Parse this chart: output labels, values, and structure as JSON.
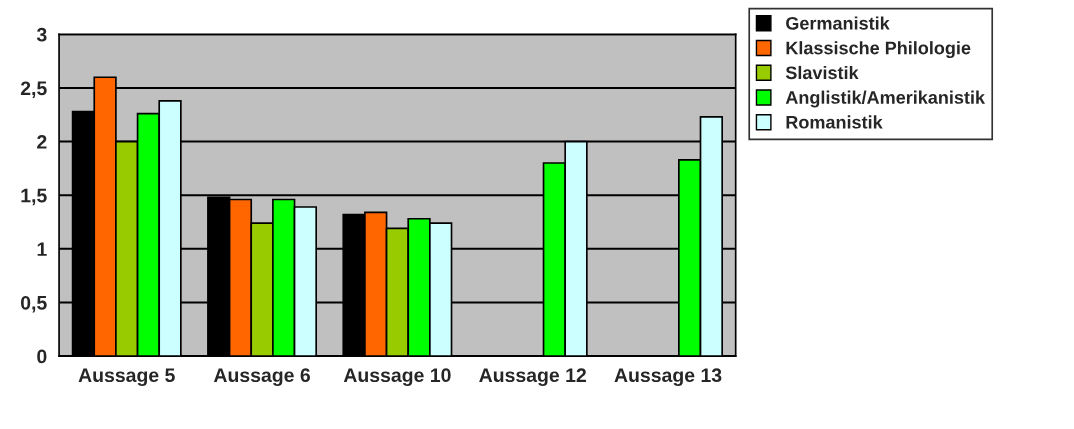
{
  "chart_data": {
    "type": "bar",
    "categories": [
      "Aussage 5",
      "Aussage 6",
      "Aussage 10",
      "Aussage 12",
      "Aussage 13"
    ],
    "series": [
      {
        "name": "Germanistik",
        "color": "#000000",
        "values": [
          2.28,
          1.48,
          1.32,
          null,
          null
        ]
      },
      {
        "name": "Klassische Philologie",
        "color": "#ff6600",
        "values": [
          2.6,
          1.46,
          1.34,
          null,
          null
        ]
      },
      {
        "name": "Slavistik",
        "color": "#99cc00",
        "values": [
          2.0,
          1.24,
          1.19,
          null,
          null
        ]
      },
      {
        "name": "Anglistik/Amerikanistik",
        "color": "#00ff00",
        "values": [
          2.26,
          1.46,
          1.28,
          1.8,
          1.83
        ]
      },
      {
        "name": "Romanistik",
        "color": "#ccffff",
        "values": [
          2.38,
          1.39,
          1.24,
          2.0,
          2.23
        ]
      }
    ],
    "ylim": [
      0,
      3
    ],
    "yticks": [
      0,
      {
        "value": 0.5,
        "label": "0,5"
      },
      1,
      {
        "value": 1.5,
        "label": "1,5"
      },
      2,
      {
        "value": 2.5,
        "label": "2,5"
      },
      3
    ],
    "grid": "y",
    "legend": "right"
  }
}
